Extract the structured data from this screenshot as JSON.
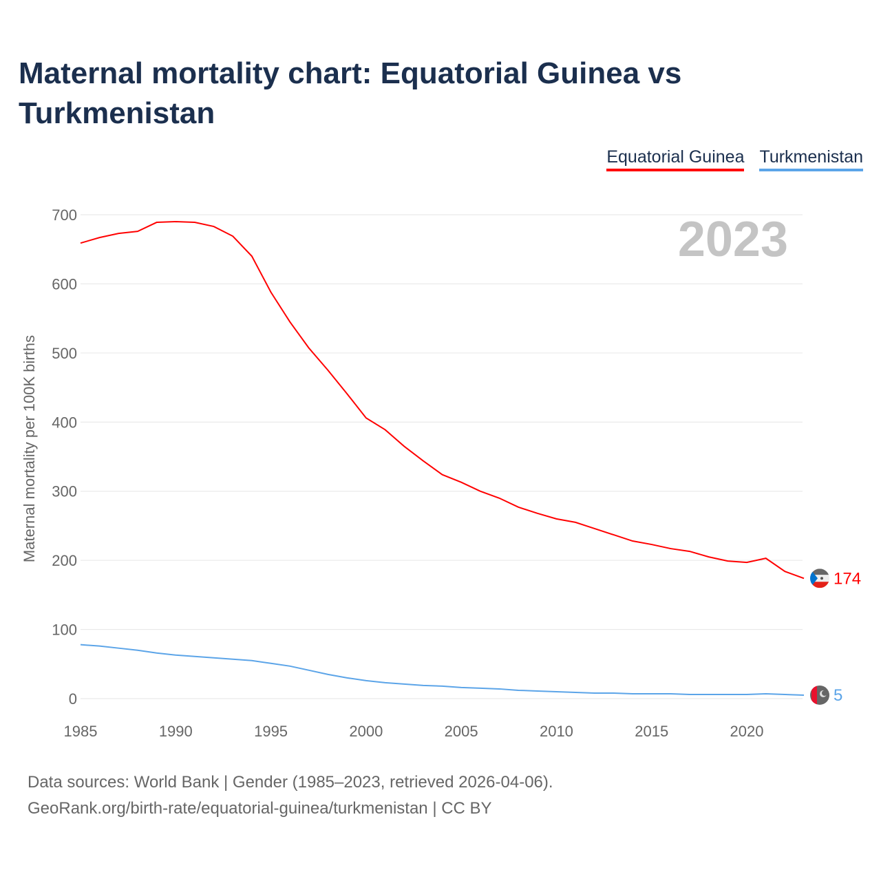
{
  "title": "Maternal mortality chart: Equatorial Guinea vs Turkmenistan",
  "legend": [
    {
      "label": "Equatorial Guinea",
      "color": "#ff0000"
    },
    {
      "label": "Turkmenistan",
      "color": "#5ba4e8"
    }
  ],
  "source_line1": "Data sources: World Bank | Gender (1985–2023, retrieved 2026-04-06).",
  "source_line2": "GeoRank.org/birth-rate/equatorial-guinea/turkmenistan | CC BY",
  "chart_data": {
    "type": "line",
    "title": "Maternal mortality chart: Equatorial Guinea vs Turkmenistan",
    "ylabel": "Maternal mortality per 100K births",
    "xlabel": "",
    "year_label": "2023",
    "xlim": [
      1985,
      2023
    ],
    "ylim": [
      0,
      700
    ],
    "xticks": [
      "1985",
      "1990",
      "1995",
      "2000",
      "2005",
      "2010",
      "2015",
      "2020"
    ],
    "yticks": [
      "0",
      "100",
      "200",
      "300",
      "400",
      "500",
      "600",
      "700"
    ],
    "grid": true,
    "x": [
      1985,
      1986,
      1987,
      1988,
      1989,
      1990,
      1991,
      1992,
      1993,
      1994,
      1995,
      1996,
      1997,
      1998,
      1999,
      2000,
      2001,
      2002,
      2003,
      2004,
      2005,
      2006,
      2007,
      2008,
      2009,
      2010,
      2011,
      2012,
      2013,
      2014,
      2015,
      2016,
      2017,
      2018,
      2019,
      2020,
      2021,
      2022,
      2023
    ],
    "series": [
      {
        "name": "Equatorial Guinea",
        "color": "#ff0000",
        "end_label": "174",
        "values": [
          659,
          667,
          673,
          676,
          689,
          690,
          689,
          683,
          669,
          640,
          588,
          545,
          507,
          475,
          441,
          406,
          389,
          365,
          344,
          324,
          313,
          300,
          290,
          277,
          268,
          260,
          255,
          246,
          237,
          228,
          223,
          217,
          213,
          205,
          199,
          197,
          203,
          184,
          174
        ]
      },
      {
        "name": "Turkmenistan",
        "color": "#5ba4e8",
        "end_label": "5",
        "values": [
          78,
          76,
          73,
          70,
          66,
          63,
          61,
          59,
          57,
          55,
          51,
          47,
          41,
          35,
          30,
          26,
          23,
          21,
          19,
          18,
          16,
          15,
          14,
          12,
          11,
          10,
          9,
          8,
          8,
          7,
          7,
          7,
          6,
          6,
          6,
          6,
          7,
          6,
          5
        ]
      }
    ]
  }
}
